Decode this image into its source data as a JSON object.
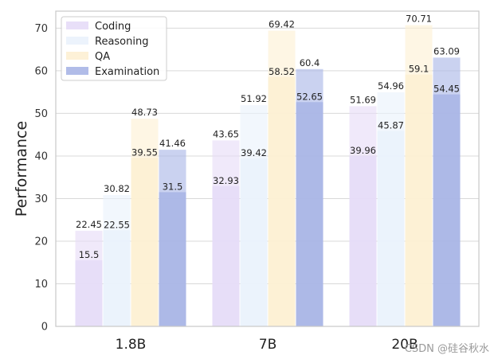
{
  "chart_data": {
    "type": "bar",
    "title": "",
    "xlabel": "",
    "ylabel": "Performance",
    "ylim": [
      0,
      74
    ],
    "yticks": [
      0,
      10,
      20,
      30,
      40,
      50,
      60,
      70
    ],
    "grid": true,
    "legend_position": "top-left",
    "categories": [
      "1.8B",
      "7B",
      "20B"
    ],
    "series": [
      {
        "name": "Coding",
        "color": "#e6dcf7",
        "lower": [
          15.5,
          32.93,
          39.96
        ],
        "upper": [
          22.45,
          43.65,
          51.69
        ]
      },
      {
        "name": "Reasoning",
        "color": "#eaf2fc",
        "lower": [
          22.55,
          39.42,
          45.87
        ],
        "upper": [
          30.82,
          51.92,
          54.96
        ]
      },
      {
        "name": "QA",
        "color": "#fdf0d4",
        "lower": [
          39.55,
          58.52,
          59.1
        ],
        "upper": [
          48.73,
          69.42,
          70.71
        ]
      },
      {
        "name": "Examination",
        "color": "#aab6e6",
        "lower": [
          31.5,
          52.65,
          54.45
        ],
        "upper": [
          41.46,
          60.4,
          63.09
        ]
      }
    ]
  },
  "watermark": "CSDN @硅谷秋水"
}
